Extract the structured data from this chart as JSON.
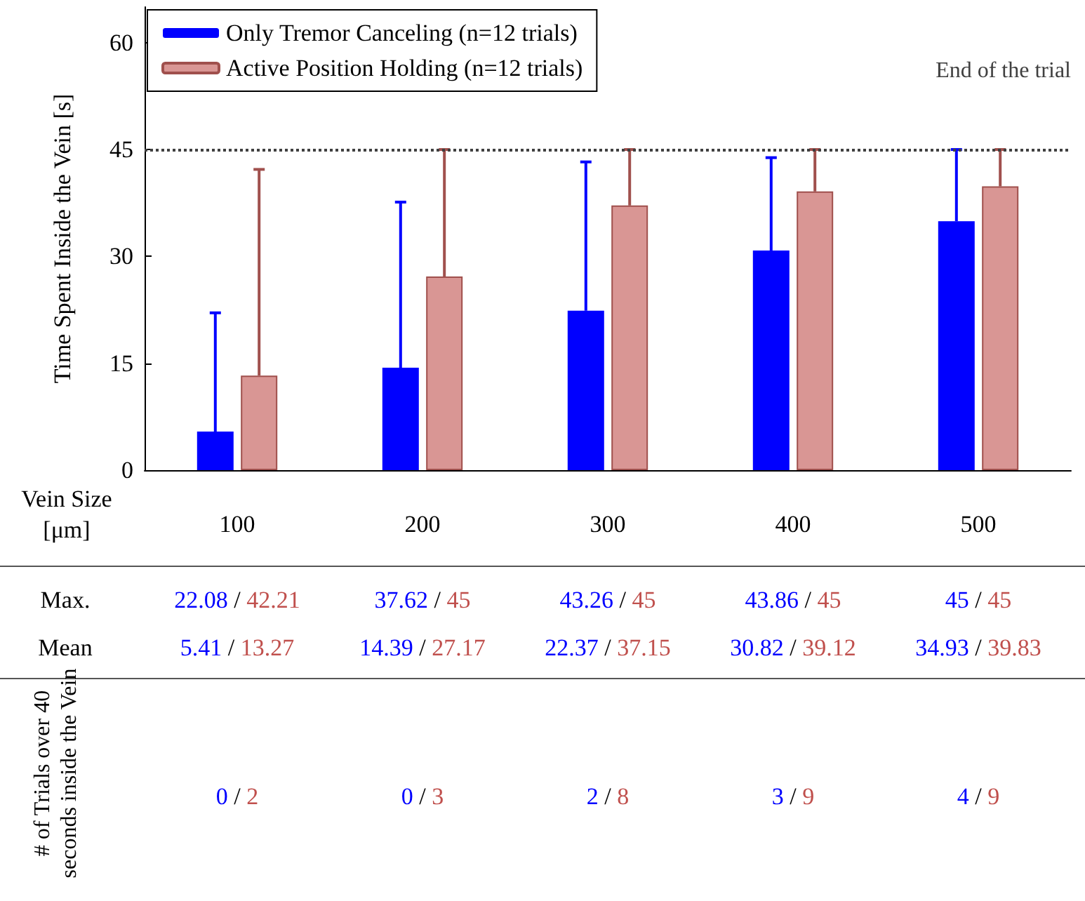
{
  "chart_data": {
    "type": "bar",
    "xlabel": "Vein Size [μm]",
    "ylabel": "Time Spent Inside the Vein [s]",
    "categories": [
      "100",
      "200",
      "300",
      "400",
      "500"
    ],
    "series": [
      {
        "name": "Only Tremor Canceling (n=12 trials)",
        "color": "#0000ff",
        "values": [
          5.41,
          14.39,
          22.37,
          30.82,
          34.93
        ],
        "errors": [
          [
            5.41,
            22.08
          ],
          [
            14.39,
            37.62
          ],
          [
            22.37,
            43.26
          ],
          [
            30.82,
            43.86
          ],
          [
            34.93,
            45
          ]
        ]
      },
      {
        "name": "Active Position Holding (n=12 trials)",
        "color": "#d99694",
        "values": [
          13.27,
          27.17,
          37.15,
          39.12,
          39.83
        ],
        "errors": [
          [
            13.27,
            42.21
          ],
          [
            27.17,
            45
          ],
          [
            37.15,
            45
          ],
          [
            39.12,
            45
          ],
          [
            39.83,
            45
          ]
        ]
      }
    ],
    "ylim": [
      0,
      65
    ],
    "yticks": [
      0,
      15,
      30,
      45,
      60
    ],
    "grid": false,
    "legend": "top left",
    "ref_lines": [
      {
        "axis": "y",
        "value": 45,
        "label": "End of the trial",
        "color": "#404040",
        "line_style": "dotted"
      }
    ],
    "annotations": [
      "Max.",
      "Mean",
      "# of Trials over 40 seconds inside the Vein",
      "22.08 / 42.21",
      "37.62 / 45",
      "43.26 / 45",
      "43.86 / 45",
      "45 / 45",
      "5.41 / 13.27",
      "14.39 / 27.17",
      "22.37 / 37.15",
      "30.82 / 39.12",
      "34.93 / 39.83",
      "0 / 2",
      "0 / 3",
      "2 / 8",
      "3 / 9",
      "4 / 9"
    ]
  }
}
